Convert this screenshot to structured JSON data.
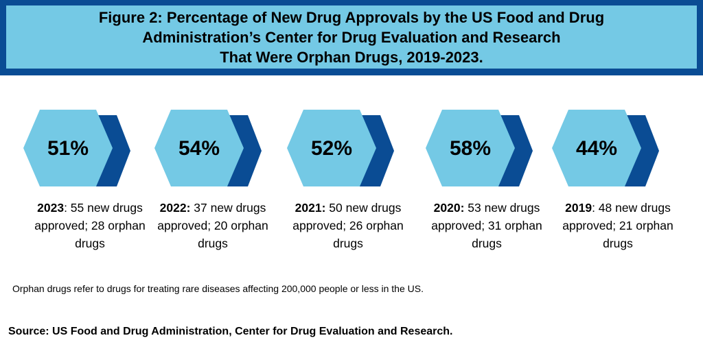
{
  "header": {
    "title_lines": [
      "Figure 2: Percentage of New Drug Approvals by the US Food and Drug",
      "Administration’s Center for Drug Evaluation and Research",
      "That Were Orphan Drugs, 2019-2023."
    ]
  },
  "colors": {
    "frame": "#0a4c94",
    "title_fill": "#74c9e5",
    "hex_light": "#74c9e5",
    "hex_dark": "#0a4c94"
  },
  "chart_data": {
    "type": "table",
    "title": "Figure 2: Percentage of New Drug Approvals by the US Food and Drug Administration’s Center for Drug Evaluation and Research That Were Orphan Drugs, 2019-2023.",
    "columns": [
      "year",
      "percent",
      "new_drugs_approved",
      "orphan_drugs"
    ],
    "rows": [
      [
        "2023",
        "51%",
        55,
        28
      ],
      [
        "2022",
        "54%",
        37,
        20
      ],
      [
        "2021",
        "52%",
        50,
        26
      ],
      [
        "2020",
        "58%",
        53,
        31
      ],
      [
        "2019",
        "44%",
        48,
        21
      ]
    ]
  },
  "stats": [
    {
      "percent": "51%",
      "year": "2023",
      "sep": ": ",
      "text": "55 new drugs approved; 28 orphan drugs"
    },
    {
      "percent": "54%",
      "year": "2022:",
      "sep": " ",
      "text": "37 new drugs approved; 20 orphan drugs"
    },
    {
      "percent": "52%",
      "year": "2021:",
      "sep": " ",
      "text": "50 new drugs approved; 26 orphan drugs"
    },
    {
      "percent": "58%",
      "year": "2020:",
      "sep": " ",
      "text": "53 new drugs approved; 31 orphan drugs"
    },
    {
      "percent": "44%",
      "year": "2019",
      "sep": ": ",
      "text": "48 new drugs approved; 21 orphan drugs"
    }
  ],
  "footnote": "Orphan drugs refer to drugs for treating rare diseases affecting 200,000 people or less in the US.",
  "source": "Source: US Food and Drug Administration, Center for Drug Evaluation and Research."
}
